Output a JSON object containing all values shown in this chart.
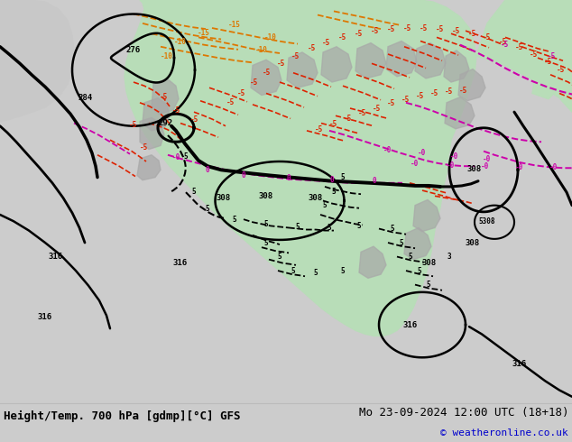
{
  "title_left": "Height/Temp. 700 hPa [gdmp][°C] GFS",
  "title_right": "Mo 23-09-2024 12:00 UTC (18+18)",
  "copyright": "© weatheronline.co.uk",
  "bg_color": "#cccccc",
  "land_green": "#b8ddb8",
  "terrain_gray": "#a8a8a8",
  "ocean_color": "#c8c8c8",
  "bottom_bg": "#eeeeee",
  "figsize": [
    6.34,
    4.9
  ],
  "dpi": 100
}
